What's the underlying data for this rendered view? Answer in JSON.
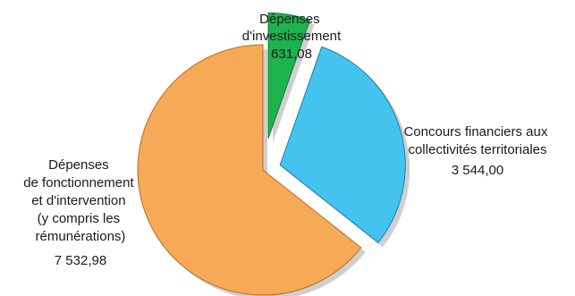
{
  "chart_data": {
    "type": "pie",
    "title": "",
    "exploded": true,
    "shadow": true,
    "slices": [
      {
        "id": "investissement",
        "label_lines": [
          "Dépenses",
          "d'investissement"
        ],
        "value": 631.08,
        "value_label": "631,08",
        "color": "#1db34f",
        "edge_color": "#0e7a33"
      },
      {
        "id": "concours",
        "label_lines": [
          "Concours financiers aux",
          "collectivités territoriales"
        ],
        "value": 3544.0,
        "value_label": "3 544,00",
        "color": "#44c3ef",
        "edge_color": "#1b7fb0"
      },
      {
        "id": "fonctionnement",
        "label_lines": [
          "Dépenses",
          "de fonctionnement",
          "et d'intervention",
          "(y compris les",
          "rémunérations)"
        ],
        "value": 7532.98,
        "value_label": "7 532,98",
        "color": "#f6a957",
        "edge_color": "#b56f27"
      }
    ]
  }
}
